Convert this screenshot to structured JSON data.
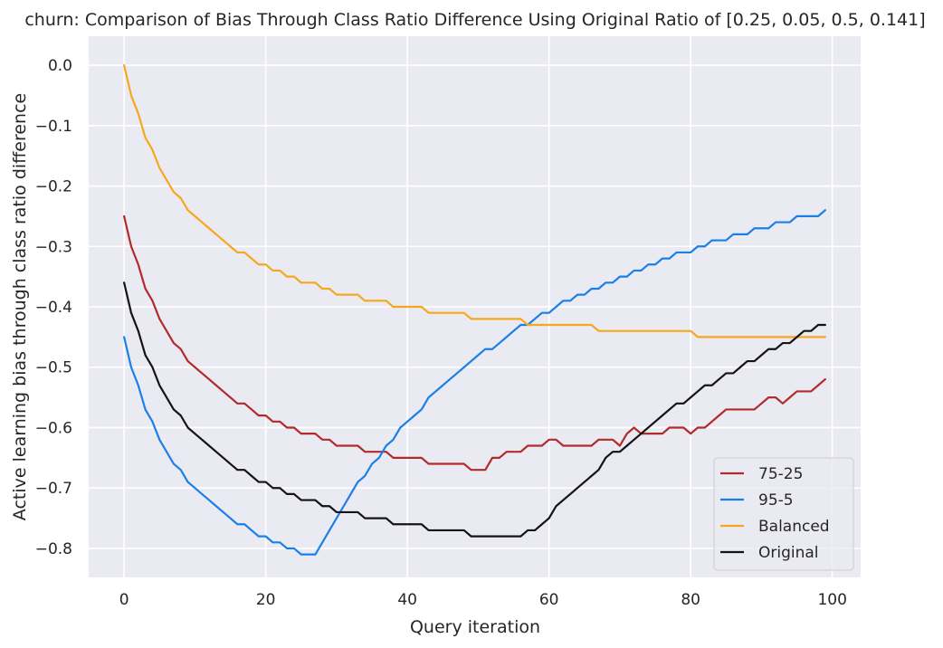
{
  "chart_data": {
    "type": "line",
    "title": "churn: Comparison of Bias Through Class Ratio Difference Using Original Ratio of [0.25, 0.05, 0.5, 0.141]",
    "xlabel": "Query iteration",
    "ylabel": "Active learning bias through class ratio difference",
    "xlim": [
      -5,
      104
    ],
    "ylim": [
      -0.848,
      0.048
    ],
    "xticks": [
      0,
      20,
      40,
      60,
      80,
      100
    ],
    "xtick_labels": [
      "0",
      "20",
      "40",
      "60",
      "80",
      "100"
    ],
    "yticks": [
      0.0,
      -0.1,
      -0.2,
      -0.3,
      -0.4,
      -0.5,
      -0.6,
      -0.7,
      -0.8
    ],
    "ytick_labels": [
      "0.0",
      "−0.1",
      "−0.2",
      "−0.3",
      "−0.4",
      "−0.5",
      "−0.6",
      "−0.7",
      "−0.8"
    ],
    "grid": true,
    "legend_position": "lower-right",
    "colors": {
      "background": "#eaeaf2",
      "grid": "#ffffff"
    },
    "series": [
      {
        "name": "75-25",
        "color": "#b22a2a",
        "x": [
          0,
          1,
          2,
          3,
          4,
          5,
          6,
          7,
          8,
          9,
          10,
          11,
          12,
          13,
          14,
          15,
          16,
          17,
          18,
          19,
          20,
          21,
          22,
          23,
          24,
          25,
          26,
          27,
          28,
          29,
          30,
          31,
          32,
          33,
          34,
          35,
          36,
          37,
          38,
          39,
          40,
          41,
          42,
          43,
          44,
          45,
          46,
          47,
          48,
          49,
          50,
          51,
          52,
          53,
          54,
          55,
          56,
          57,
          58,
          59,
          60,
          61,
          62,
          63,
          64,
          65,
          66,
          67,
          68,
          69,
          70,
          71,
          72,
          73,
          74,
          75,
          76,
          77,
          78,
          79,
          80,
          81,
          82,
          83,
          84,
          85,
          86,
          87,
          88,
          89,
          90,
          91,
          92,
          93,
          94,
          95,
          96,
          97,
          98,
          99
        ],
        "y": [
          -0.25,
          -0.3,
          -0.33,
          -0.37,
          -0.39,
          -0.42,
          -0.44,
          -0.46,
          -0.47,
          -0.49,
          -0.5,
          -0.51,
          -0.52,
          -0.53,
          -0.54,
          -0.55,
          -0.56,
          -0.56,
          -0.57,
          -0.58,
          -0.58,
          -0.59,
          -0.59,
          -0.6,
          -0.6,
          -0.61,
          -0.61,
          -0.61,
          -0.62,
          -0.62,
          -0.63,
          -0.63,
          -0.63,
          -0.63,
          -0.64,
          -0.64,
          -0.64,
          -0.64,
          -0.65,
          -0.65,
          -0.65,
          -0.65,
          -0.65,
          -0.66,
          -0.66,
          -0.66,
          -0.66,
          -0.66,
          -0.66,
          -0.67,
          -0.67,
          -0.67,
          -0.65,
          -0.65,
          -0.64,
          -0.64,
          -0.64,
          -0.63,
          -0.63,
          -0.63,
          -0.62,
          -0.62,
          -0.63,
          -0.63,
          -0.63,
          -0.63,
          -0.63,
          -0.62,
          -0.62,
          -0.62,
          -0.63,
          -0.61,
          -0.6,
          -0.61,
          -0.61,
          -0.61,
          -0.61,
          -0.6,
          -0.6,
          -0.6,
          -0.61,
          -0.6,
          -0.6,
          -0.59,
          -0.58,
          -0.57,
          -0.57,
          -0.57,
          -0.57,
          -0.57,
          -0.56,
          -0.55,
          -0.55,
          -0.56,
          -0.55,
          -0.54,
          -0.54,
          -0.54,
          -0.53,
          -0.52
        ]
      },
      {
        "name": "95-5",
        "color": "#1a80e8",
        "x": [
          0,
          1,
          2,
          3,
          4,
          5,
          6,
          7,
          8,
          9,
          10,
          11,
          12,
          13,
          14,
          15,
          16,
          17,
          18,
          19,
          20,
          21,
          22,
          23,
          24,
          25,
          26,
          27,
          28,
          29,
          30,
          31,
          32,
          33,
          34,
          35,
          36,
          37,
          38,
          39,
          40,
          41,
          42,
          43,
          44,
          45,
          46,
          47,
          48,
          49,
          50,
          51,
          52,
          53,
          54,
          55,
          56,
          57,
          58,
          59,
          60,
          61,
          62,
          63,
          64,
          65,
          66,
          67,
          68,
          69,
          70,
          71,
          72,
          73,
          74,
          75,
          76,
          77,
          78,
          79,
          80,
          81,
          82,
          83,
          84,
          85,
          86,
          87,
          88,
          89,
          90,
          91,
          92,
          93,
          94,
          95,
          96,
          97,
          98,
          99
        ],
        "y": [
          -0.45,
          -0.5,
          -0.53,
          -0.57,
          -0.59,
          -0.62,
          -0.64,
          -0.66,
          -0.67,
          -0.69,
          -0.7,
          -0.71,
          -0.72,
          -0.73,
          -0.74,
          -0.75,
          -0.76,
          -0.76,
          -0.77,
          -0.78,
          -0.78,
          -0.79,
          -0.79,
          -0.8,
          -0.8,
          -0.81,
          -0.81,
          -0.81,
          -0.79,
          -0.77,
          -0.75,
          -0.73,
          -0.71,
          -0.69,
          -0.68,
          -0.66,
          -0.65,
          -0.63,
          -0.62,
          -0.6,
          -0.59,
          -0.58,
          -0.57,
          -0.55,
          -0.54,
          -0.53,
          -0.52,
          -0.51,
          -0.5,
          -0.49,
          -0.48,
          -0.47,
          -0.47,
          -0.46,
          -0.45,
          -0.44,
          -0.43,
          -0.43,
          -0.42,
          -0.41,
          -0.41,
          -0.4,
          -0.39,
          -0.39,
          -0.38,
          -0.38,
          -0.37,
          -0.37,
          -0.36,
          -0.36,
          -0.35,
          -0.35,
          -0.34,
          -0.34,
          -0.33,
          -0.33,
          -0.32,
          -0.32,
          -0.31,
          -0.31,
          -0.31,
          -0.3,
          -0.3,
          -0.29,
          -0.29,
          -0.29,
          -0.28,
          -0.28,
          -0.28,
          -0.27,
          -0.27,
          -0.27,
          -0.26,
          -0.26,
          -0.26,
          -0.25,
          -0.25,
          -0.25,
          -0.25,
          -0.24
        ]
      },
      {
        "name": "Balanced",
        "color": "#f6a81c",
        "x": [
          0,
          1,
          2,
          3,
          4,
          5,
          6,
          7,
          8,
          9,
          10,
          11,
          12,
          13,
          14,
          15,
          16,
          17,
          18,
          19,
          20,
          21,
          22,
          23,
          24,
          25,
          26,
          27,
          28,
          29,
          30,
          31,
          32,
          33,
          34,
          35,
          36,
          37,
          38,
          39,
          40,
          41,
          42,
          43,
          44,
          45,
          46,
          47,
          48,
          49,
          50,
          51,
          52,
          53,
          54,
          55,
          56,
          57,
          58,
          59,
          60,
          61,
          62,
          63,
          64,
          65,
          66,
          67,
          68,
          69,
          70,
          71,
          72,
          73,
          74,
          75,
          76,
          77,
          78,
          79,
          80,
          81,
          82,
          83,
          84,
          85,
          86,
          87,
          88,
          89,
          90,
          91,
          92,
          93,
          94,
          95,
          96,
          97,
          98,
          99
        ],
        "y": [
          0.0,
          -0.05,
          -0.08,
          -0.12,
          -0.14,
          -0.17,
          -0.19,
          -0.21,
          -0.22,
          -0.24,
          -0.25,
          -0.26,
          -0.27,
          -0.28,
          -0.29,
          -0.3,
          -0.31,
          -0.31,
          -0.32,
          -0.33,
          -0.33,
          -0.34,
          -0.34,
          -0.35,
          -0.35,
          -0.36,
          -0.36,
          -0.36,
          -0.37,
          -0.37,
          -0.38,
          -0.38,
          -0.38,
          -0.38,
          -0.39,
          -0.39,
          -0.39,
          -0.39,
          -0.4,
          -0.4,
          -0.4,
          -0.4,
          -0.4,
          -0.41,
          -0.41,
          -0.41,
          -0.41,
          -0.41,
          -0.41,
          -0.42,
          -0.42,
          -0.42,
          -0.42,
          -0.42,
          -0.42,
          -0.42,
          -0.42,
          -0.43,
          -0.43,
          -0.43,
          -0.43,
          -0.43,
          -0.43,
          -0.43,
          -0.43,
          -0.43,
          -0.43,
          -0.44,
          -0.44,
          -0.44,
          -0.44,
          -0.44,
          -0.44,
          -0.44,
          -0.44,
          -0.44,
          -0.44,
          -0.44,
          -0.44,
          -0.44,
          -0.44,
          -0.45,
          -0.45,
          -0.45,
          -0.45,
          -0.45,
          -0.45,
          -0.45,
          -0.45,
          -0.45,
          -0.45,
          -0.45,
          -0.45,
          -0.45,
          -0.45,
          -0.45,
          -0.45,
          -0.45,
          -0.45,
          -0.45
        ]
      },
      {
        "name": "Original",
        "color": "#141414",
        "x": [
          0,
          1,
          2,
          3,
          4,
          5,
          6,
          7,
          8,
          9,
          10,
          11,
          12,
          13,
          14,
          15,
          16,
          17,
          18,
          19,
          20,
          21,
          22,
          23,
          24,
          25,
          26,
          27,
          28,
          29,
          30,
          31,
          32,
          33,
          34,
          35,
          36,
          37,
          38,
          39,
          40,
          41,
          42,
          43,
          44,
          45,
          46,
          47,
          48,
          49,
          50,
          51,
          52,
          53,
          54,
          55,
          56,
          57,
          58,
          59,
          60,
          61,
          62,
          63,
          64,
          65,
          66,
          67,
          68,
          69,
          70,
          71,
          72,
          73,
          74,
          75,
          76,
          77,
          78,
          79,
          80,
          81,
          82,
          83,
          84,
          85,
          86,
          87,
          88,
          89,
          90,
          91,
          92,
          93,
          94,
          95,
          96,
          97,
          98,
          99
        ],
        "y": [
          -0.36,
          -0.41,
          -0.44,
          -0.48,
          -0.5,
          -0.53,
          -0.55,
          -0.57,
          -0.58,
          -0.6,
          -0.61,
          -0.62,
          -0.63,
          -0.64,
          -0.65,
          -0.66,
          -0.67,
          -0.67,
          -0.68,
          -0.69,
          -0.69,
          -0.7,
          -0.7,
          -0.71,
          -0.71,
          -0.72,
          -0.72,
          -0.72,
          -0.73,
          -0.73,
          -0.74,
          -0.74,
          -0.74,
          -0.74,
          -0.75,
          -0.75,
          -0.75,
          -0.75,
          -0.76,
          -0.76,
          -0.76,
          -0.76,
          -0.76,
          -0.77,
          -0.77,
          -0.77,
          -0.77,
          -0.77,
          -0.77,
          -0.78,
          -0.78,
          -0.78,
          -0.78,
          -0.78,
          -0.78,
          -0.78,
          -0.78,
          -0.77,
          -0.77,
          -0.76,
          -0.75,
          -0.73,
          -0.72,
          -0.71,
          -0.7,
          -0.69,
          -0.68,
          -0.67,
          -0.65,
          -0.64,
          -0.64,
          -0.63,
          -0.62,
          -0.61,
          -0.6,
          -0.59,
          -0.58,
          -0.57,
          -0.56,
          -0.56,
          -0.55,
          -0.54,
          -0.53,
          -0.53,
          -0.52,
          -0.51,
          -0.51,
          -0.5,
          -0.49,
          -0.49,
          -0.48,
          -0.47,
          -0.47,
          -0.46,
          -0.46,
          -0.45,
          -0.44,
          -0.44,
          -0.43,
          -0.43
        ]
      }
    ]
  }
}
